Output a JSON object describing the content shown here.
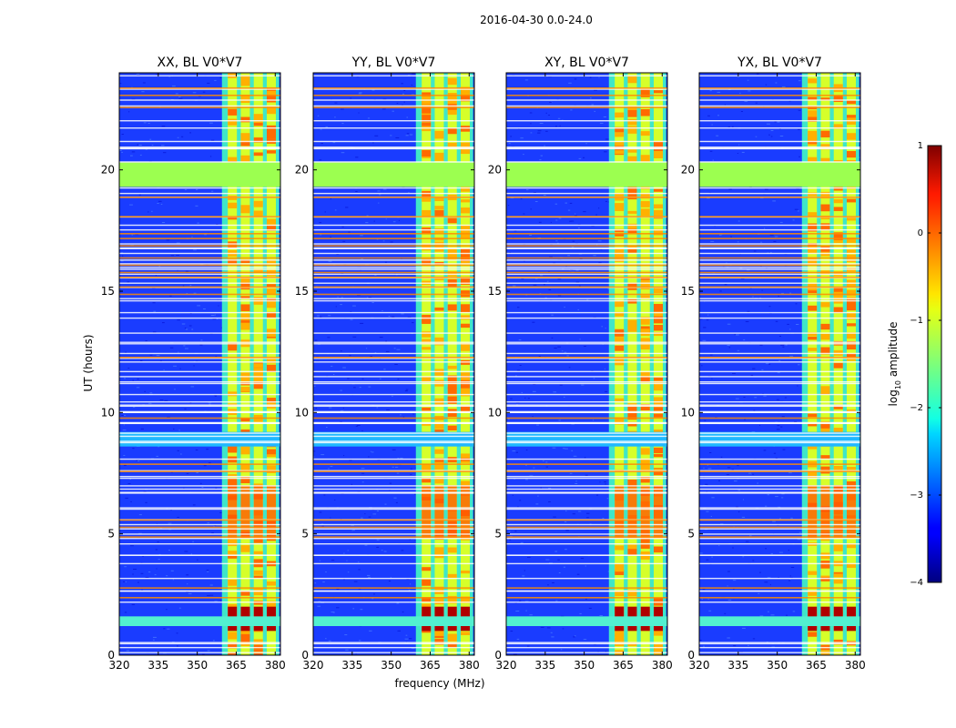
{
  "suptitle": "2016-04-30 0.0-24.0",
  "chart_data": {
    "type": "heatmap",
    "xlabel": "frequency (MHz)",
    "ylabel": "UT (hours)",
    "xlim": [
      320,
      382
    ],
    "ylim": [
      0,
      24
    ],
    "x_ticks": [
      "320",
      "335",
      "350",
      "365",
      "380"
    ],
    "x_tick_values": [
      320,
      335,
      350,
      365,
      380
    ],
    "y_ticks": [
      "0",
      "5",
      "10",
      "15",
      "20"
    ],
    "y_tick_values": [
      0,
      5,
      10,
      15,
      20
    ],
    "panels": [
      {
        "title": "XX, BL V0*V7"
      },
      {
        "title": "YY, BL V0*V7"
      },
      {
        "title": "XY, BL V0*V7"
      },
      {
        "title": "YX, BL V0*V7"
      }
    ],
    "band_range_mhz": [
      359.5,
      381.5
    ],
    "bright_channels_mhz": [
      363.5,
      368.5,
      373.5,
      378.5
    ],
    "saturated_rows_ut": [
      [
        19.3,
        20.3
      ]
    ],
    "colorbar": {
      "label_main": "log",
      "label_sub": "10",
      "label_rest": " amplitude",
      "range": [
        -4,
        1
      ],
      "ticks": [
        "1",
        "0",
        "−1",
        "−2",
        "−3",
        "−4"
      ],
      "tick_values": [
        1,
        0,
        -1,
        -2,
        -3,
        -4
      ],
      "colormap": "jet"
    }
  }
}
